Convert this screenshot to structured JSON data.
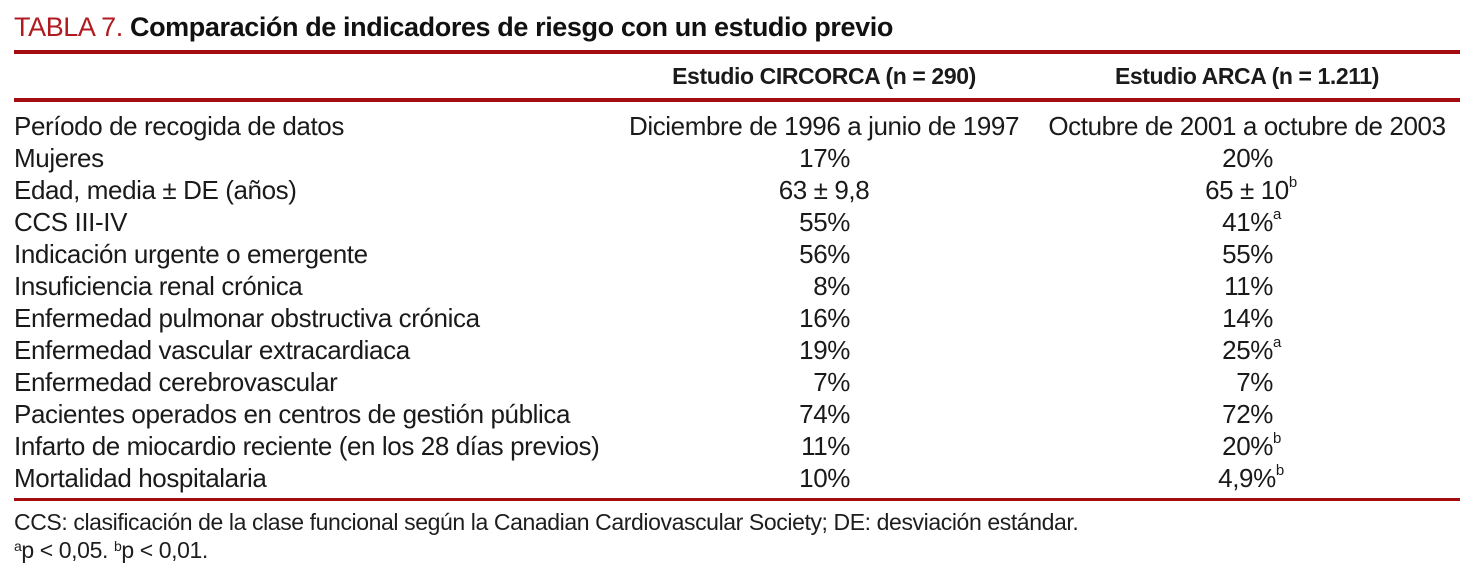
{
  "table": {
    "tag": "TABLA 7.",
    "title": "Comparación de indicadores de riesgo con un estudio previo",
    "accent_color": "#a30d12",
    "tag_color": "#b01b20",
    "header": {
      "col_circorca": "Estudio CIRCORCA (n = 290)",
      "col_arca": "Estudio ARCA (n = 1.211)"
    },
    "rows": [
      {
        "label": "Período de recogida de datos",
        "circorca": {
          "value": "Diciembre de 1996 a junio de 1997",
          "sup": "",
          "wide": true
        },
        "arca": {
          "value": "Octubre de 2001 a octubre de 2003",
          "sup": "",
          "wide": true
        }
      },
      {
        "label": "Mujeres",
        "circorca": {
          "value": "17%",
          "sup": ""
        },
        "arca": {
          "value": "20%",
          "sup": ""
        }
      },
      {
        "label": "Edad, media ± DE (años)",
        "circorca": {
          "value": "63 ± 9,8",
          "sup": ""
        },
        "arca": {
          "value": "65 ± 10",
          "sup": "b"
        }
      },
      {
        "label": "CCS III-IV",
        "circorca": {
          "value": "55%",
          "sup": ""
        },
        "arca": {
          "value": "41%",
          "sup": "a"
        }
      },
      {
        "label": "Indicación urgente o emergente",
        "circorca": {
          "value": "56%",
          "sup": ""
        },
        "arca": {
          "value": "55%",
          "sup": ""
        }
      },
      {
        "label": "Insuficiencia renal crónica",
        "circorca": {
          "value": "8%",
          "sup": ""
        },
        "arca": {
          "value": "11%",
          "sup": ""
        }
      },
      {
        "label": "Enfermedad pulmonar obstructiva crónica",
        "circorca": {
          "value": "16%",
          "sup": ""
        },
        "arca": {
          "value": "14%",
          "sup": ""
        }
      },
      {
        "label": "Enfermedad vascular extracardiaca",
        "circorca": {
          "value": "19%",
          "sup": ""
        },
        "arca": {
          "value": "25%",
          "sup": "a"
        }
      },
      {
        "label": "Enfermedad cerebrovascular",
        "circorca": {
          "value": "7%",
          "sup": ""
        },
        "arca": {
          "value": "7%",
          "sup": ""
        }
      },
      {
        "label": "Pacientes operados en centros de gestión pública",
        "circorca": {
          "value": "74%",
          "sup": ""
        },
        "arca": {
          "value": "72%",
          "sup": ""
        }
      },
      {
        "label": "Infarto de miocardio reciente (en los 28 días previos)",
        "circorca": {
          "value": "11%",
          "sup": ""
        },
        "arca": {
          "value": "20%",
          "sup": "b"
        }
      },
      {
        "label": "Mortalidad hospitalaria",
        "circorca": {
          "value": "10%",
          "sup": ""
        },
        "arca": {
          "value": "4,9%",
          "sup": "b"
        }
      }
    ],
    "footnotes": {
      "abbreviations": "CCS: clasificación de la clase funcional según la Canadian Cardiovascular Society; DE: desviación estándar.",
      "significance": [
        {
          "sup": "a",
          "text": "p < 0,05. "
        },
        {
          "sup": "b",
          "text": "p < 0,01."
        }
      ]
    }
  }
}
